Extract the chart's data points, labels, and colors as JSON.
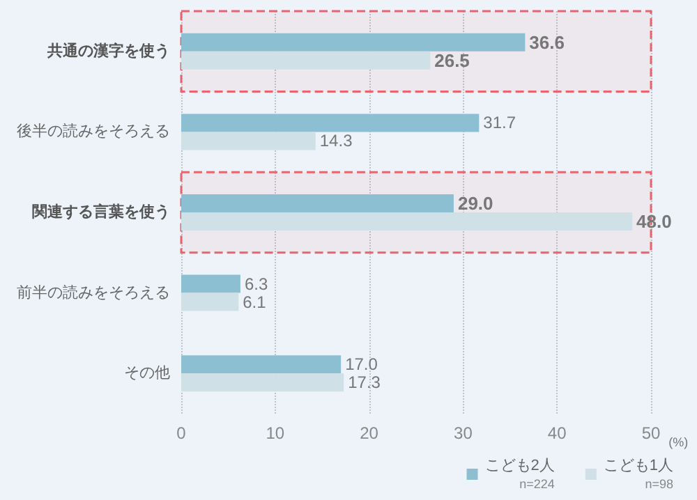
{
  "chart_data": {
    "type": "bar",
    "orientation": "horizontal",
    "xlabel": "(%)",
    "categories": [
      "共通の漢字を使う",
      "後半の読みをそろえる",
      "関連する言葉を使う",
      "前半の読みをそろえる",
      "その他"
    ],
    "series": [
      {
        "name": "こども2人",
        "color": "#8dbfd3",
        "values": [
          36.6,
          31.7,
          29.0,
          6.3,
          17.0
        ],
        "value_labels": [
          "36.6",
          "31.7",
          "29.0",
          "6.3",
          "17.0"
        ]
      },
      {
        "name": "こども1人",
        "color": "#cfe1e6",
        "values": [
          26.5,
          14.3,
          48.0,
          6.1,
          17.3
        ],
        "value_labels": [
          "26.5",
          "14.3",
          "48.0",
          "6.1",
          "17.3"
        ]
      }
    ],
    "xlim": [
      0,
      50
    ],
    "xticks": [
      0,
      10,
      20,
      30,
      40,
      50
    ],
    "grid": "x",
    "legend": "bottom right",
    "annotations": [
      "n=224",
      "n=98"
    ],
    "bands": [
      {
        "axis": "y",
        "from": "共通の漢字を使う",
        "to": "共通の漢字を使う",
        "color": "#e8646e"
      },
      {
        "axis": "y",
        "from": "関連する言葉を使う",
        "to": "関連する言葉を使う",
        "color": "#e8646e"
      }
    ]
  }
}
